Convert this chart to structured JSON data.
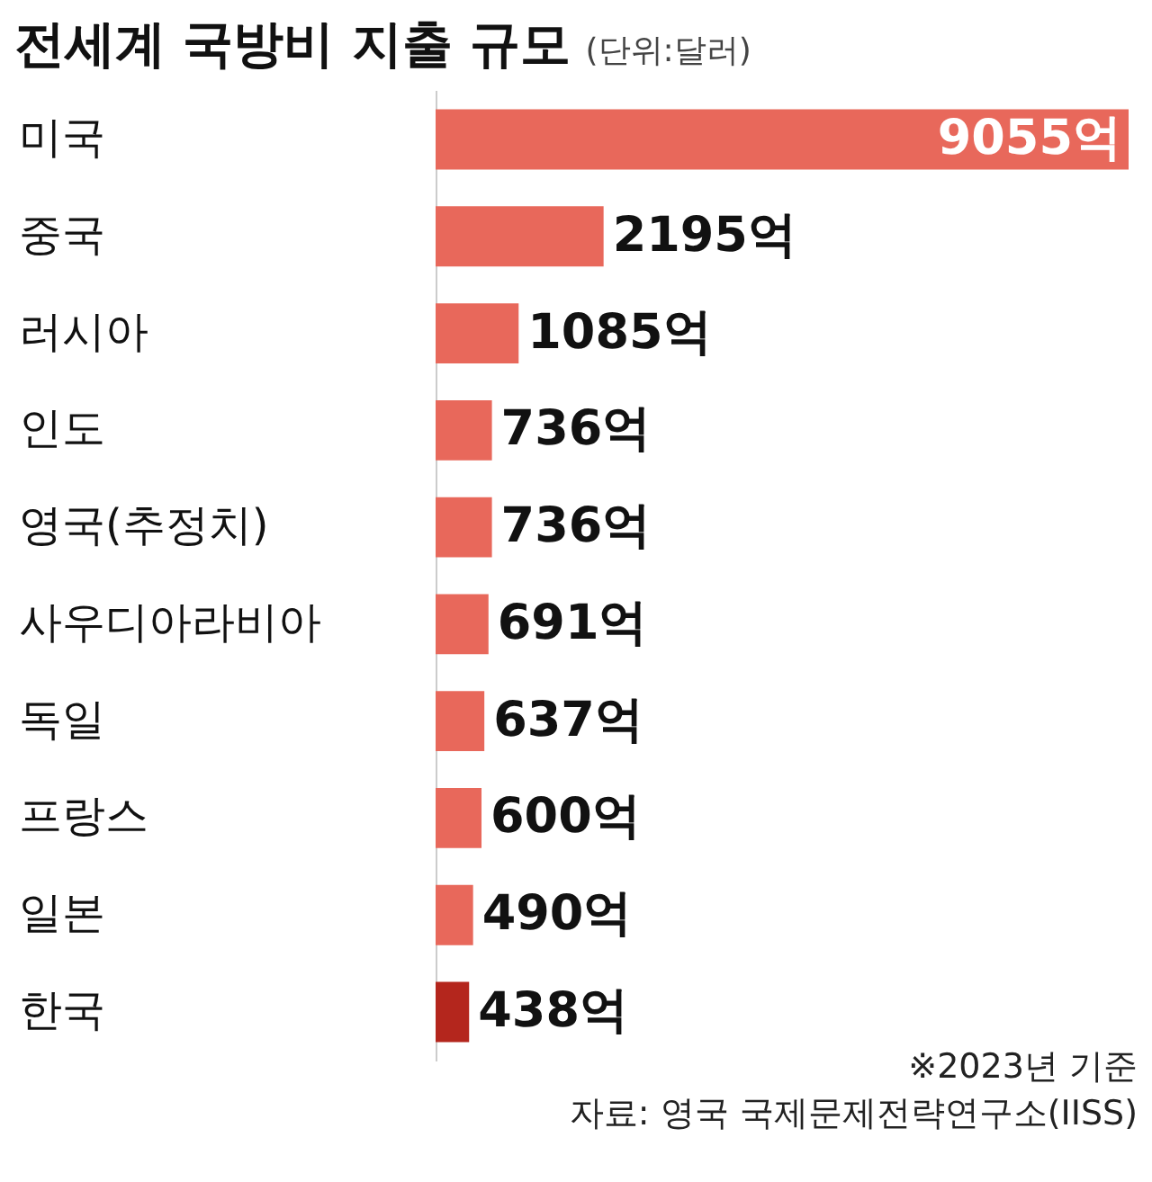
{
  "chart_data": {
    "type": "bar",
    "orientation": "horizontal",
    "title": "전세계 국방비 지출 규모",
    "subtitle": "(단위:달러)",
    "categories": [
      "미국",
      "중국",
      "러시아",
      "인도",
      "영국(추정치)",
      "사우디아라비아",
      "독일",
      "프랑스",
      "일본",
      "한국"
    ],
    "values": [
      9055,
      2195,
      1085,
      736,
      736,
      691,
      637,
      600,
      490,
      438
    ],
    "value_labels": [
      "9055억",
      "2195억",
      "1085억",
      "736억",
      "736억",
      "691억",
      "637억",
      "600억",
      "490억",
      "438억"
    ],
    "colors": [
      "#e8685b",
      "#e8685b",
      "#e8685b",
      "#e8685b",
      "#e8685b",
      "#e8685b",
      "#e8685b",
      "#e8685b",
      "#e8685b",
      "#b4261d"
    ],
    "annotations": [
      "※2023년 기준",
      "자료: 영국 국제문제전략연구소(IISS)"
    ]
  }
}
